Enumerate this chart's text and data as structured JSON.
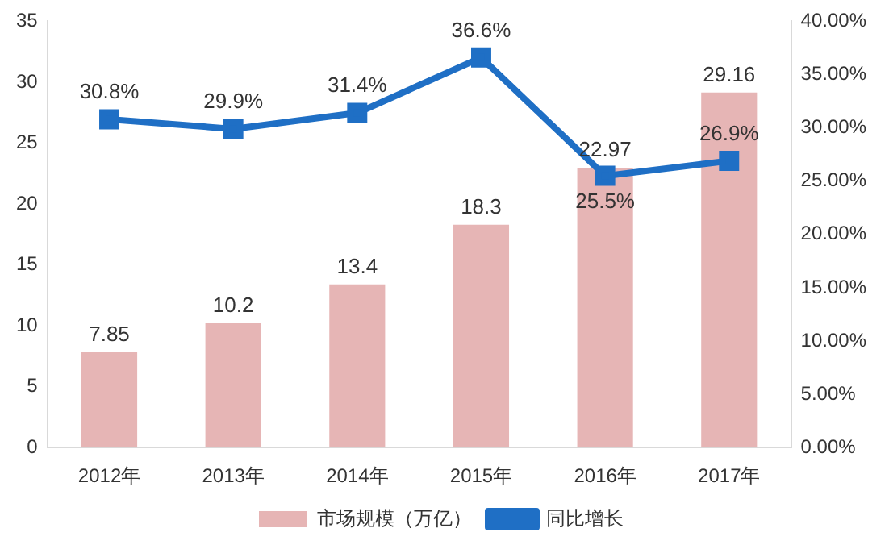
{
  "chart_data": {
    "type": "bar",
    "categories": [
      "2012年",
      "2013年",
      "2014年",
      "2015年",
      "2016年",
      "2017年"
    ],
    "series": [
      {
        "name": "市场规模（万亿）",
        "color": "#e6b5b5",
        "values": [
          7.85,
          10.2,
          13.4,
          18.3,
          22.97,
          29.16
        ],
        "value_labels": [
          "7.85",
          "10.2",
          "13.4",
          "18.3",
          "22.97",
          "29.16"
        ]
      },
      {
        "name": "同比增长",
        "type": "line",
        "axis": "y2",
        "color": "#1f6fc5",
        "values": [
          30.8,
          29.9,
          31.4,
          36.6,
          25.5,
          26.9
        ],
        "value_labels": [
          "30.8%",
          "29.9%",
          "31.4%",
          "36.6%",
          "25.5%",
          "26.9%"
        ]
      }
    ],
    "ylim": [
      0,
      35
    ],
    "yticks": [
      0,
      5,
      10,
      15,
      20,
      25,
      30,
      35
    ],
    "y2lim": [
      0,
      40
    ],
    "y2ticks": [
      {
        "value": 0,
        "label": "0.00%"
      },
      {
        "value": 5,
        "label": "5.00%"
      },
      {
        "value": 10,
        "label": "10.00%"
      },
      {
        "value": 15,
        "label": "15.00%"
      },
      {
        "value": 20,
        "label": "20.00%"
      },
      {
        "value": 25,
        "label": "25.00%"
      },
      {
        "value": 30,
        "label": "30.00%"
      },
      {
        "value": 35,
        "label": "35.00%"
      },
      {
        "value": 40,
        "label": "40.00%"
      }
    ],
    "grid": false,
    "legend": "bottom",
    "marker": "square",
    "line_style": "solid"
  }
}
